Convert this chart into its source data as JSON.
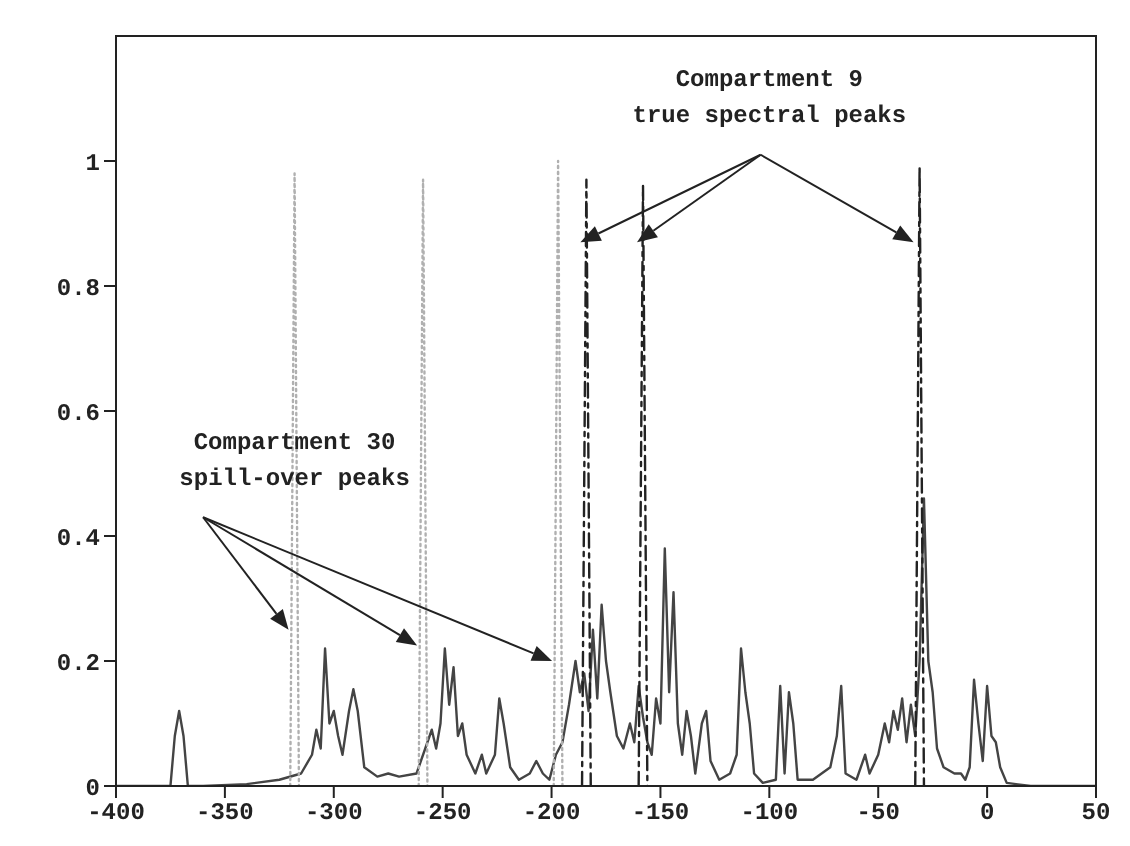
{
  "chart_data": {
    "type": "line",
    "xlim": [
      -400,
      50
    ],
    "xticks": [
      -400,
      -350,
      -300,
      -250,
      -200,
      -150,
      -100,
      -50,
      0,
      50
    ],
    "ylim": [
      0,
      1.2
    ],
    "yticks": [
      0,
      0.2,
      0.4,
      0.6,
      0.8,
      1
    ],
    "grid": false,
    "legend": false,
    "marker": "none",
    "annotations": [
      "Compartment 9\ntrue spectral peaks",
      "Compartment 30\nspill-over peaks"
    ],
    "series": [
      {
        "color": "#444444",
        "line_style": "solid",
        "x": [
          -400,
          -375,
          -373,
          -371,
          -369,
          -367,
          -360,
          -340,
          -325,
          -315,
          -310,
          -308,
          -306,
          -304,
          -302,
          -300,
          -298,
          -296,
          -293,
          -291,
          -289,
          -286,
          -280,
          -275,
          -270,
          -262,
          -258,
          -255,
          -253,
          -251,
          -249,
          -247,
          -245,
          -243,
          -241,
          -239,
          -235,
          -232,
          -230,
          -226,
          -224,
          -222,
          -219,
          -215,
          -210,
          -207,
          -204,
          -201,
          -198,
          -195,
          -192,
          -189,
          -187,
          -185,
          -183,
          -181,
          -179,
          -177,
          -175,
          -173,
          -170,
          -167,
          -164,
          -162,
          -160,
          -158,
          -156,
          -154,
          -152,
          -150,
          -148,
          -146,
          -144,
          -142,
          -140,
          -138,
          -136,
          -134,
          -131,
          -129,
          -127,
          -123,
          -118,
          -115,
          -113,
          -111,
          -109,
          -107,
          -103,
          -97,
          -95,
          -93,
          -91,
          -89,
          -87,
          -80,
          -72,
          -69,
          -67,
          -65,
          -60,
          -56,
          -54,
          -50,
          -47,
          -45,
          -43,
          -41,
          -39,
          -37,
          -35,
          -33,
          -31,
          -29,
          -27,
          -25,
          -23,
          -20,
          -15,
          -12,
          -10,
          -8,
          -6,
          -4,
          -2,
          0,
          2,
          4,
          6,
          9,
          20,
          50
        ],
        "values": [
          0,
          0,
          0.08,
          0.12,
          0.08,
          0,
          0,
          0.003,
          0.01,
          0.02,
          0.05,
          0.09,
          0.06,
          0.22,
          0.1,
          0.12,
          0.08,
          0.05,
          0.12,
          0.155,
          0.12,
          0.03,
          0.015,
          0.02,
          0.015,
          0.02,
          0.06,
          0.09,
          0.06,
          0.1,
          0.22,
          0.13,
          0.19,
          0.08,
          0.1,
          0.05,
          0.02,
          0.05,
          0.02,
          0.05,
          0.14,
          0.1,
          0.03,
          0.01,
          0.02,
          0.04,
          0.02,
          0.01,
          0.05,
          0.07,
          0.13,
          0.2,
          0.15,
          0.18,
          0.12,
          0.25,
          0.14,
          0.29,
          0.2,
          0.15,
          0.08,
          0.06,
          0.1,
          0.07,
          0.16,
          0.11,
          0.07,
          0.05,
          0.14,
          0.1,
          0.38,
          0.15,
          0.31,
          0.1,
          0.05,
          0.12,
          0.08,
          0.02,
          0.1,
          0.12,
          0.04,
          0.01,
          0.02,
          0.05,
          0.22,
          0.15,
          0.1,
          0.02,
          0.005,
          0.01,
          0.16,
          0.02,
          0.15,
          0.1,
          0.01,
          0.01,
          0.03,
          0.08,
          0.16,
          0.02,
          0.01,
          0.05,
          0.02,
          0.05,
          0.1,
          0.07,
          0.12,
          0.09,
          0.14,
          0.07,
          0.13,
          0.08,
          0.2,
          0.46,
          0.2,
          0.15,
          0.06,
          0.03,
          0.02,
          0.02,
          0.01,
          0.03,
          0.17,
          0.1,
          0.04,
          0.16,
          0.08,
          0.07,
          0.03,
          0.005,
          0,
          0
        ]
      },
      {
        "color": "#222222",
        "line_style": "dashed",
        "x": [
          -186,
          -184,
          -182
        ],
        "values": [
          0,
          0.97,
          0
        ]
      },
      {
        "color": "#222222",
        "line_style": "dashed",
        "x": [
          -160,
          -158,
          -156
        ],
        "values": [
          0,
          0.96,
          0
        ]
      },
      {
        "color": "#222222",
        "line_style": "dashed",
        "x": [
          -33,
          -31,
          -29
        ],
        "values": [
          0,
          0.99,
          0
        ]
      },
      {
        "color": "#b0b0b0",
        "line_style": "dotted",
        "x": [
          -320,
          -318,
          -316
        ],
        "values": [
          0,
          0.98,
          0
        ]
      },
      {
        "color": "#b0b0b0",
        "line_style": "dotted",
        "x": [
          -261,
          -259,
          -257
        ],
        "values": [
          0,
          0.97,
          0
        ]
      },
      {
        "color": "#b0b0b0",
        "line_style": "dotted",
        "x": [
          -199,
          -197,
          -195
        ],
        "values": [
          0,
          1.0,
          0
        ]
      }
    ]
  }
}
